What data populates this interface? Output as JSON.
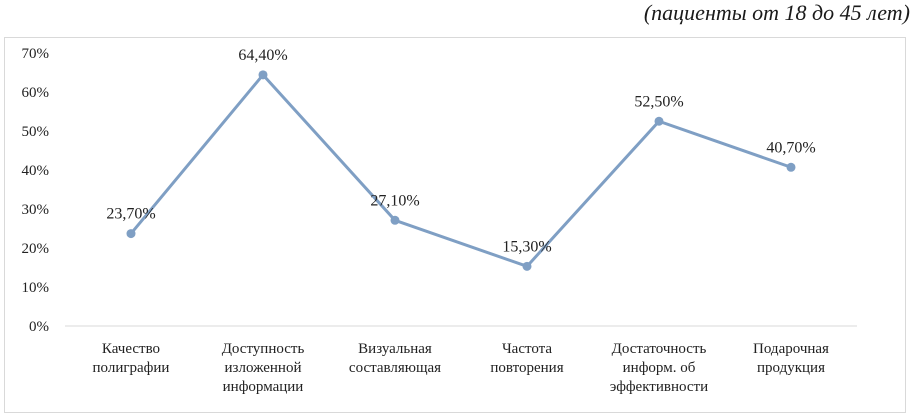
{
  "caption": "(пациенты от 18 до 45 лет)",
  "chart_data": {
    "type": "line",
    "title": "",
    "xlabel": "",
    "ylabel": "",
    "ylim": [
      0,
      70
    ],
    "yticks": [
      "0%",
      "10%",
      "20%",
      "30%",
      "40%",
      "50%",
      "60%",
      "70%"
    ],
    "grid": false,
    "legend": "none",
    "line_color": "#7f9fc4",
    "categories": [
      [
        "Качество",
        "полиграфии"
      ],
      [
        "Доступность",
        "изложенной",
        "информации"
      ],
      [
        "Визуальная",
        "составляющая"
      ],
      [
        "Частота",
        "повторения"
      ],
      [
        "Достаточность",
        "информ. об",
        "эффективности"
      ],
      [
        "Подарочная",
        "продукция"
      ]
    ],
    "values": [
      23.7,
      64.4,
      27.1,
      15.3,
      52.5,
      40.7
    ],
    "data_labels": [
      "23,70%",
      "64,40%",
      "27,10%",
      "15,30%",
      "52,50%",
      "40,70%"
    ]
  }
}
